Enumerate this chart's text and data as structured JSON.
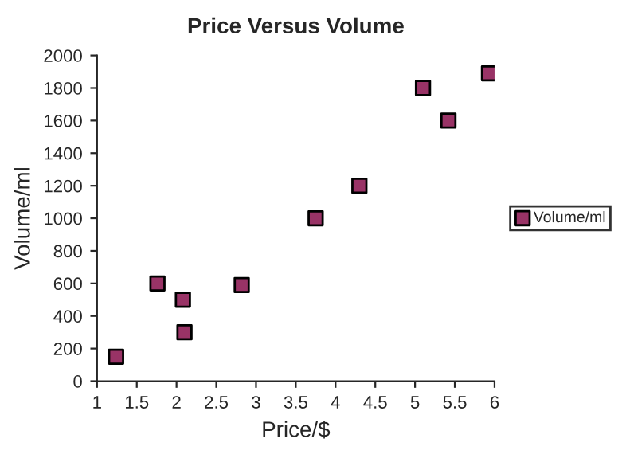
{
  "chart_data": {
    "type": "scatter",
    "title": "Price Versus Volume",
    "xlabel": "Price/$",
    "ylabel": "Volume/ml",
    "x": [
      1.24,
      1.76,
      2.08,
      2.1,
      2.82,
      3.75,
      4.3,
      5.1,
      5.42,
      5.93
    ],
    "series": [
      {
        "name": "Volume/ml",
        "color": "#993366",
        "values": [
          150,
          600,
          500,
          300,
          590,
          1000,
          1200,
          1800,
          1600,
          1890
        ]
      }
    ],
    "xlim": [
      1,
      6
    ],
    "xticks": [
      1,
      1.5,
      2,
      2.5,
      3,
      3.5,
      4,
      4.5,
      5,
      5.5,
      6
    ],
    "ylim": [
      0,
      2000
    ],
    "yticks": [
      0,
      200,
      400,
      600,
      800,
      1000,
      1200,
      1400,
      1600,
      1800,
      2000
    ],
    "marker": "square",
    "legend": "right",
    "grid": false
  }
}
